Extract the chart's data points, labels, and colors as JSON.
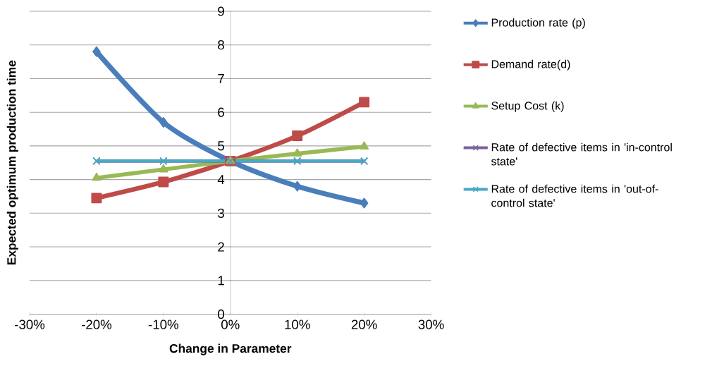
{
  "chart_data": {
    "type": "line",
    "xlabel": "Change in Parameter",
    "ylabel": "Expected optimum production  time",
    "x": [
      -20,
      -10,
      0,
      10,
      20
    ],
    "series": [
      {
        "name": "Production rate (p)",
        "color": "#4a7ebb",
        "marker": "diamond",
        "values": [
          7.8,
          5.7,
          4.55,
          3.8,
          3.3
        ]
      },
      {
        "name": "Demand rate(d)",
        "color": "#be4b48",
        "marker": "square",
        "values": [
          3.45,
          3.93,
          4.55,
          5.3,
          6.3
        ]
      },
      {
        "name": "Setup Cost (k)",
        "color": "#98b954",
        "marker": "triangle",
        "values": [
          4.05,
          4.3,
          4.55,
          4.77,
          4.98
        ]
      },
      {
        "name": "Rate of defective items in 'in-control state'",
        "color": "#7d60a0",
        "marker": "cross",
        "values": [
          4.55,
          4.55,
          4.55,
          4.55,
          4.55
        ]
      },
      {
        "name": "Rate of defective items in 'out-of-control state'",
        "color": "#46aac5",
        "marker": "cross",
        "values": [
          4.55,
          4.55,
          4.55,
          4.55,
          4.55
        ]
      }
    ],
    "xlim": [
      -30,
      30
    ],
    "xticks": [
      {
        "value": -30,
        "label": "-30%"
      },
      {
        "value": -20,
        "label": "-20%"
      },
      {
        "value": -10,
        "label": "-10%"
      },
      {
        "value": 0,
        "label": "0%"
      },
      {
        "value": 10,
        "label": "10%"
      },
      {
        "value": 20,
        "label": "20%"
      },
      {
        "value": 30,
        "label": "30%"
      }
    ],
    "ylim": [
      0,
      9
    ],
    "yticks": [
      0,
      1,
      2,
      3,
      4,
      5,
      6,
      7,
      8,
      9
    ],
    "grid": "y",
    "legend": "right",
    "line_style": "solid"
  }
}
